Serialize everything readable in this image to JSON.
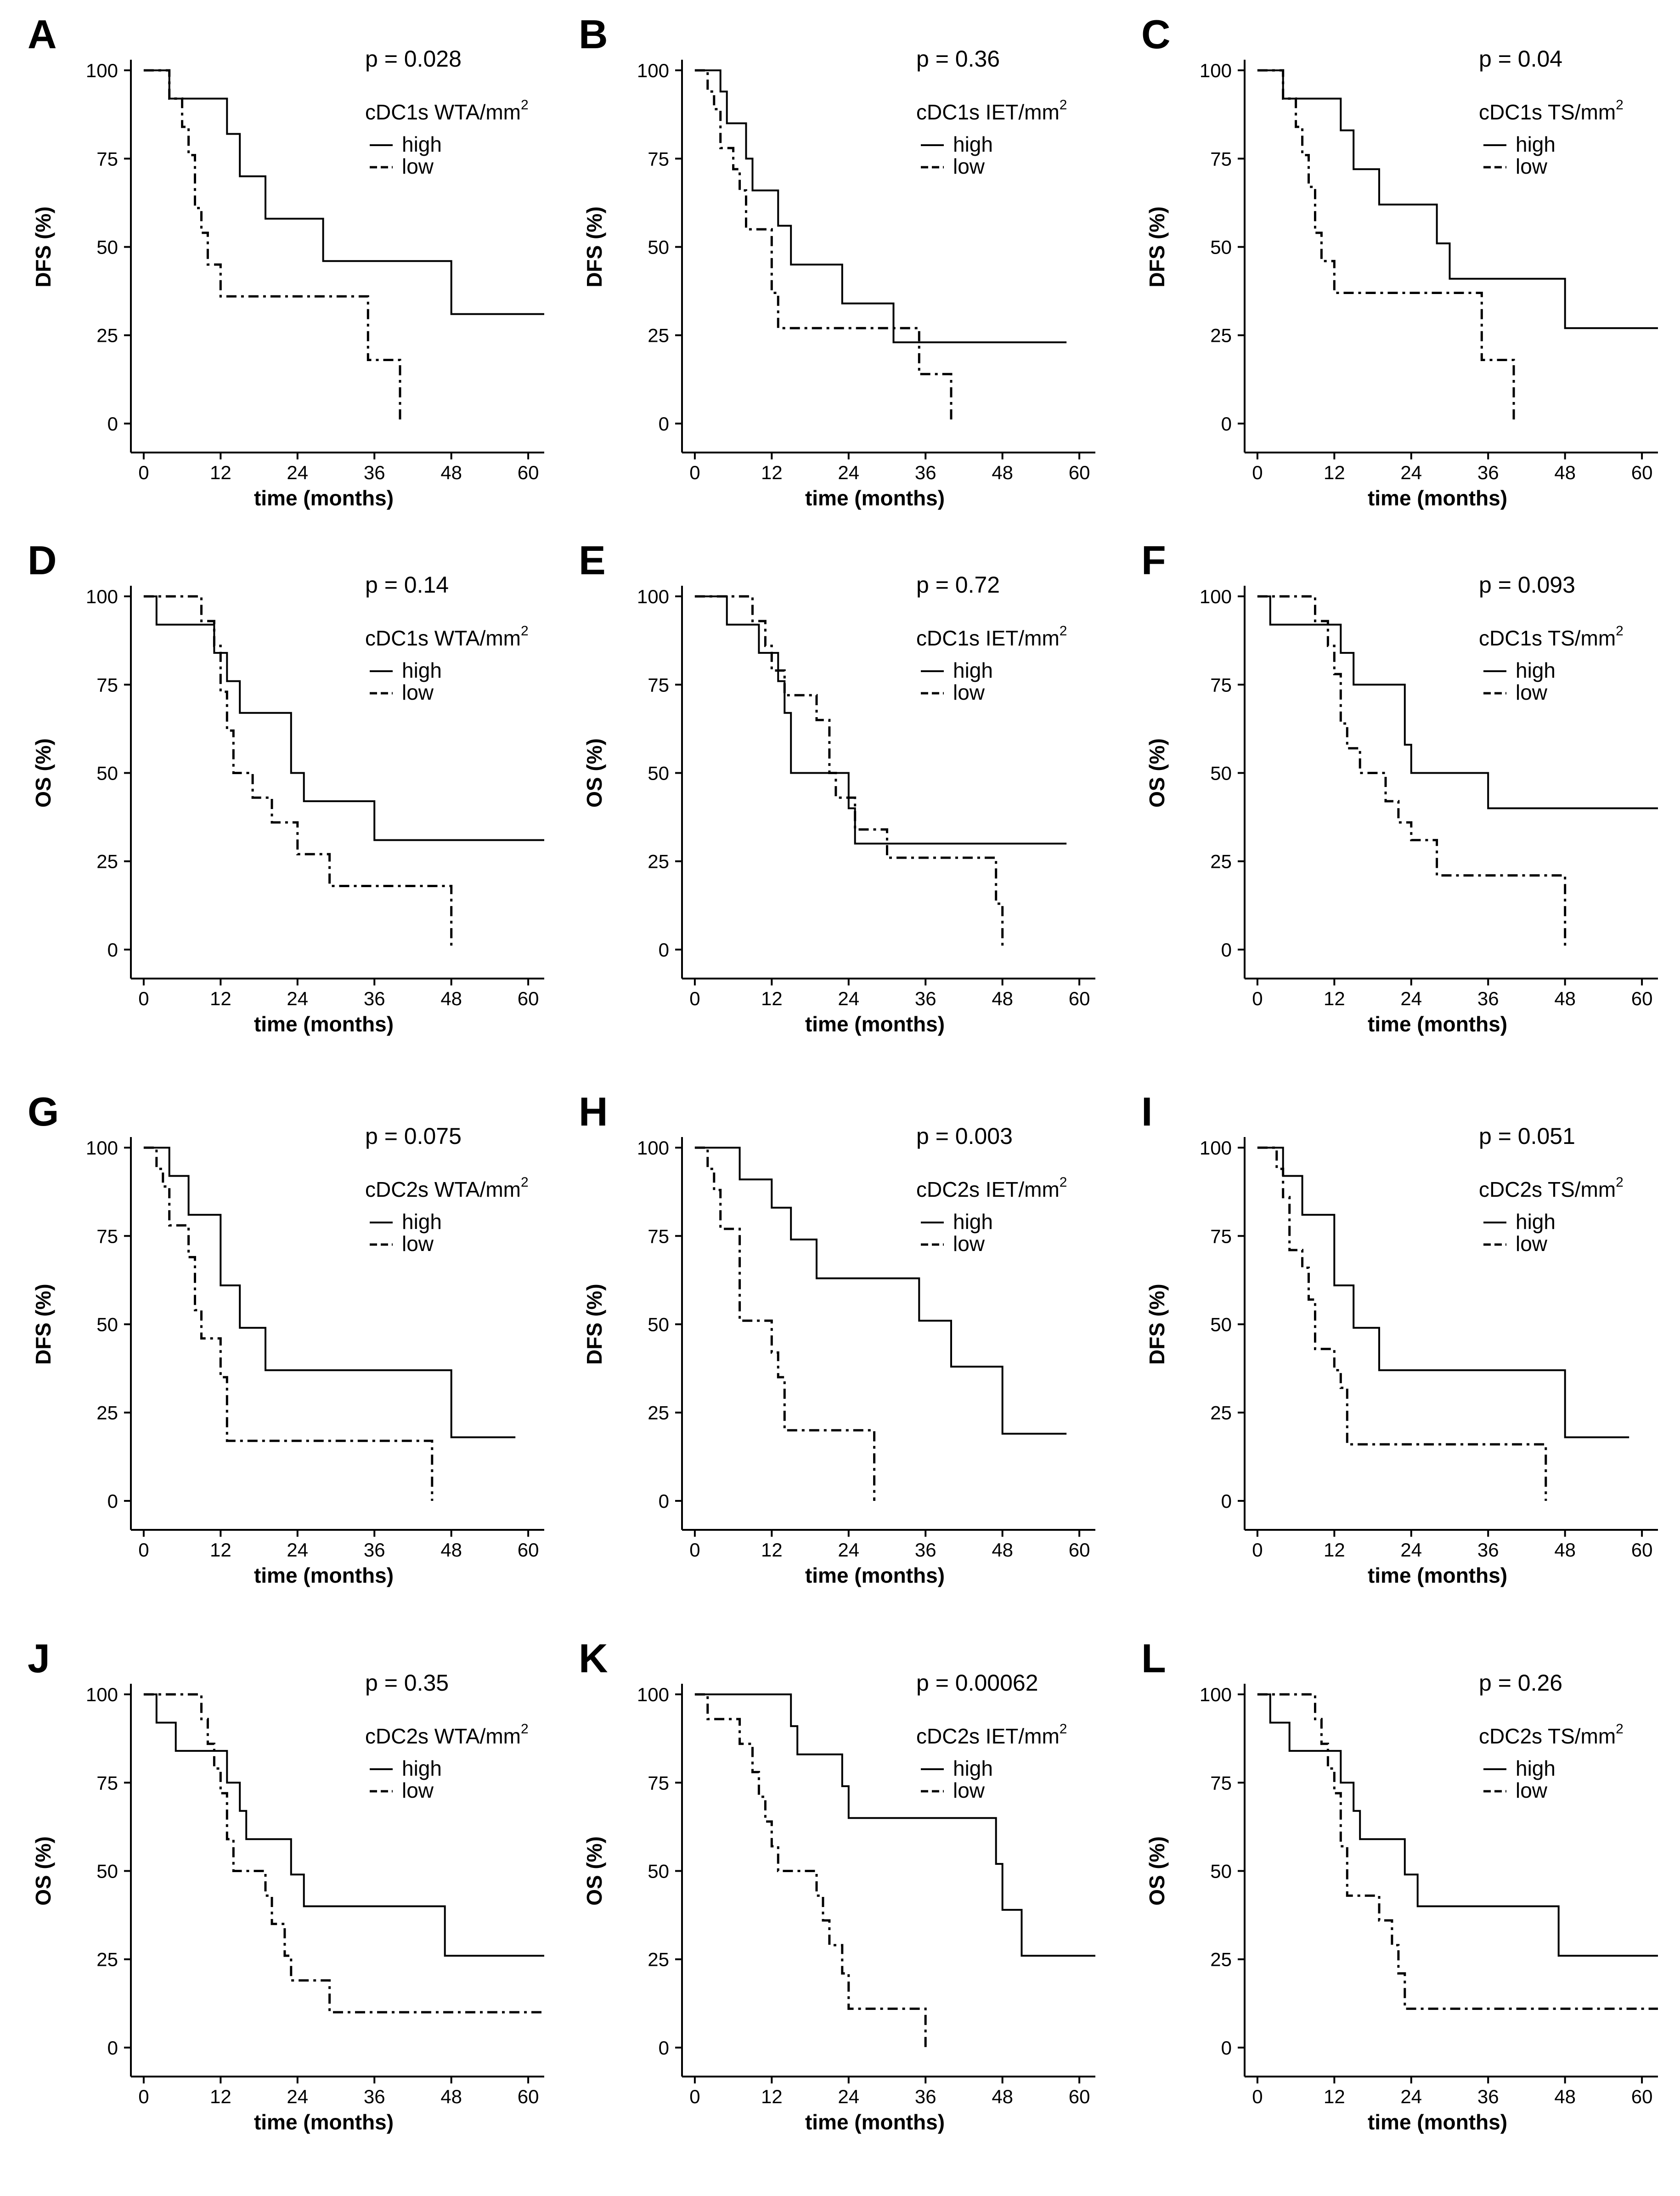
{
  "figure": {
    "background": "#ffffff",
    "line_color": "#000000"
  },
  "chart_data": [
    {
      "panel": "A",
      "type": "line",
      "step": true,
      "pvalue": "p = 0.028",
      "legend_title": "cDC1s WTA/mm",
      "legend_sup": "2",
      "xlabel": "time (months)",
      "ylabel": "DFS (%)",
      "xlim": [
        -2,
        62.5
      ],
      "ylim": [
        -3,
        103
      ],
      "xticks": [
        0,
        12,
        24,
        36,
        48,
        60
      ],
      "yticks": [
        0,
        25,
        50,
        75,
        100
      ],
      "series": [
        {
          "name": "high",
          "style": "solid",
          "x": [
            0,
            4,
            13,
            15,
            19,
            28,
            48,
            62.5
          ],
          "y": [
            100,
            92,
            82,
            70,
            58,
            46,
            31,
            31
          ]
        },
        {
          "name": "low",
          "style": "dashdot",
          "x": [
            0,
            4,
            6,
            7,
            8,
            9,
            10,
            12,
            35,
            40,
            40
          ],
          "y": [
            100,
            92,
            84,
            76,
            61,
            54,
            45,
            36,
            18,
            18,
            0
          ]
        }
      ]
    },
    {
      "panel": "B",
      "type": "line",
      "step": true,
      "pvalue": "p = 0.36",
      "legend_title": "cDC1s IET/mm",
      "legend_sup": "2",
      "xlabel": "time (months)",
      "ylabel": "DFS (%)",
      "xlim": [
        -2,
        62.5
      ],
      "ylim": [
        -3,
        103
      ],
      "xticks": [
        0,
        12,
        24,
        36,
        48,
        60
      ],
      "yticks": [
        0,
        25,
        50,
        75,
        100
      ],
      "series": [
        {
          "name": "high",
          "style": "solid",
          "x": [
            0,
            4,
            5,
            8,
            9,
            13,
            15,
            23,
            31,
            58
          ],
          "y": [
            100,
            94,
            85,
            75,
            66,
            56,
            45,
            34,
            23,
            23
          ]
        },
        {
          "name": "low",
          "style": "dashdot",
          "x": [
            0,
            2,
            3,
            4,
            6,
            7,
            8,
            12,
            13,
            35,
            40,
            40
          ],
          "y": [
            100,
            94,
            89,
            78,
            72,
            66,
            55,
            37,
            27,
            14,
            14,
            0
          ]
        }
      ]
    },
    {
      "panel": "C",
      "type": "line",
      "step": true,
      "pvalue": "p = 0.04",
      "legend_title": "cDC1s TS/mm",
      "legend_sup": "2",
      "xlabel": "time (months)",
      "ylabel": "DFS (%)",
      "xlim": [
        -2,
        62.5
      ],
      "ylim": [
        -3,
        103
      ],
      "xticks": [
        0,
        12,
        24,
        36,
        48,
        60
      ],
      "yticks": [
        0,
        25,
        50,
        75,
        100
      ],
      "series": [
        {
          "name": "high",
          "style": "solid",
          "x": [
            0,
            4,
            13,
            15,
            19,
            28,
            30,
            48,
            62.5
          ],
          "y": [
            100,
            92,
            83,
            72,
            62,
            51,
            41,
            27,
            27
          ]
        },
        {
          "name": "low",
          "style": "dashdot",
          "x": [
            0,
            4,
            6,
            7,
            8,
            9,
            10,
            12,
            35,
            40,
            40
          ],
          "y": [
            100,
            92,
            84,
            76,
            67,
            54,
            46,
            37,
            18,
            18,
            0
          ]
        }
      ]
    },
    {
      "panel": "D",
      "type": "line",
      "step": true,
      "pvalue": "p = 0.14",
      "legend_title": "cDC1s WTA/mm",
      "legend_sup": "2",
      "xlabel": "time (months)",
      "ylabel": "OS (%)",
      "xlim": [
        -2,
        62.5
      ],
      "ylim": [
        -3,
        103
      ],
      "xticks": [
        0,
        12,
        24,
        36,
        48,
        60
      ],
      "yticks": [
        0,
        25,
        50,
        75,
        100
      ],
      "series": [
        {
          "name": "high",
          "style": "solid",
          "x": [
            0,
            2,
            11,
            13,
            15,
            23,
            25,
            36,
            62.5
          ],
          "y": [
            100,
            92,
            84,
            76,
            67,
            50,
            42,
            31,
            31
          ]
        },
        {
          "name": "low",
          "style": "dashdot",
          "x": [
            0,
            9,
            11,
            12,
            13,
            14,
            17,
            20,
            24,
            29,
            48,
            48
          ],
          "y": [
            100,
            93,
            86,
            73,
            62,
            50,
            43,
            36,
            27,
            18,
            18,
            0
          ]
        }
      ]
    },
    {
      "panel": "E",
      "type": "line",
      "step": true,
      "pvalue": "p = 0.72",
      "legend_title": "cDC1s IET/mm",
      "legend_sup": "2",
      "xlabel": "time (months)",
      "ylabel": "OS (%)",
      "xlim": [
        -2,
        62.5
      ],
      "ylim": [
        -3,
        103
      ],
      "xticks": [
        0,
        12,
        24,
        36,
        48,
        60
      ],
      "yticks": [
        0,
        25,
        50,
        75,
        100
      ],
      "series": [
        {
          "name": "high",
          "style": "solid",
          "x": [
            0,
            5,
            10,
            13,
            14,
            15,
            24,
            25,
            58
          ],
          "y": [
            100,
            92,
            84,
            76,
            67,
            50,
            40,
            30,
            30
          ]
        },
        {
          "name": "low",
          "style": "dashdot",
          "x": [
            0,
            9,
            11,
            12,
            14,
            19,
            21,
            22,
            25,
            30,
            47,
            48,
            48
          ],
          "y": [
            100,
            93,
            86,
            79,
            72,
            65,
            50,
            43,
            34,
            26,
            13,
            13,
            0
          ]
        }
      ]
    },
    {
      "panel": "F",
      "type": "line",
      "step": true,
      "pvalue": "p = 0.093",
      "legend_title": "cDC1s TS/mm",
      "legend_sup": "2",
      "xlabel": "time (months)",
      "ylabel": "OS (%)",
      "xlim": [
        -2,
        62.5
      ],
      "ylim": [
        -3,
        103
      ],
      "xticks": [
        0,
        12,
        24,
        36,
        48,
        60
      ],
      "yticks": [
        0,
        25,
        50,
        75,
        100
      ],
      "series": [
        {
          "name": "high",
          "style": "solid",
          "x": [
            0,
            2,
            13,
            15,
            23,
            24,
            36,
            62.5
          ],
          "y": [
            100,
            92,
            84,
            75,
            58,
            50,
            40,
            40
          ]
        },
        {
          "name": "low",
          "style": "dashdot",
          "x": [
            0,
            9,
            11,
            12,
            13,
            14,
            16,
            20,
            22,
            24,
            28,
            48,
            48
          ],
          "y": [
            100,
            93,
            86,
            78,
            64,
            57,
            50,
            42,
            36,
            31,
            21,
            21,
            0
          ]
        }
      ]
    },
    {
      "panel": "G",
      "type": "line",
      "step": true,
      "pvalue": "p = 0.075",
      "legend_title": "cDC2s WTA/mm",
      "legend_sup": "2",
      "xlabel": "time (months)",
      "ylabel": "DFS (%)",
      "xlim": [
        -2,
        62.5
      ],
      "ylim": [
        -3,
        103
      ],
      "xticks": [
        0,
        12,
        24,
        36,
        48,
        60
      ],
      "yticks": [
        0,
        25,
        50,
        75,
        100
      ],
      "series": [
        {
          "name": "high",
          "style": "solid",
          "x": [
            0,
            4,
            7,
            12,
            15,
            19,
            48,
            58
          ],
          "y": [
            100,
            92,
            81,
            61,
            49,
            37,
            18,
            18
          ]
        },
        {
          "name": "low",
          "style": "dashdot",
          "x": [
            0,
            2,
            3,
            4,
            7,
            8,
            9,
            12,
            13,
            45,
            45
          ],
          "y": [
            100,
            94,
            89,
            78,
            69,
            54,
            46,
            35,
            17,
            17,
            0
          ]
        }
      ]
    },
    {
      "panel": "H",
      "type": "line",
      "step": true,
      "pvalue": "p = 0.003",
      "legend_title": "cDC2s IET/mm",
      "legend_sup": "2",
      "xlabel": "time (months)",
      "ylabel": "DFS (%)",
      "xlim": [
        -2,
        62.5
      ],
      "ylim": [
        -3,
        103
      ],
      "xticks": [
        0,
        12,
        24,
        36,
        48,
        60
      ],
      "yticks": [
        0,
        25,
        50,
        75,
        100
      ],
      "series": [
        {
          "name": "high",
          "style": "solid",
          "x": [
            0,
            7,
            12,
            15,
            19,
            35,
            40,
            48,
            58
          ],
          "y": [
            100,
            91,
            83,
            74,
            63,
            51,
            38,
            19,
            19
          ]
        },
        {
          "name": "low",
          "style": "dashdot",
          "x": [
            0,
            2,
            3,
            4,
            7,
            12,
            13,
            14,
            28,
            28
          ],
          "y": [
            100,
            94,
            88,
            77,
            51,
            42,
            35,
            20,
            20,
            0
          ]
        }
      ]
    },
    {
      "panel": "I",
      "type": "line",
      "step": true,
      "pvalue": "p = 0.051",
      "legend_title": "cDC2s TS/mm",
      "legend_sup": "2",
      "xlabel": "time (months)",
      "ylabel": "DFS (%)",
      "xlim": [
        -2,
        62.5
      ],
      "ylim": [
        -3,
        103
      ],
      "xticks": [
        0,
        12,
        24,
        36,
        48,
        60
      ],
      "yticks": [
        0,
        25,
        50,
        75,
        100
      ],
      "series": [
        {
          "name": "high",
          "style": "solid",
          "x": [
            0,
            4,
            7,
            12,
            15,
            19,
            48,
            58
          ],
          "y": [
            100,
            92,
            81,
            61,
            49,
            37,
            18,
            18
          ]
        },
        {
          "name": "low",
          "style": "dashdot",
          "x": [
            0,
            3,
            4,
            5,
            7,
            8,
            9,
            12,
            13,
            14,
            45,
            45
          ],
          "y": [
            100,
            94,
            86,
            71,
            66,
            57,
            43,
            37,
            32,
            16,
            16,
            0
          ]
        }
      ]
    },
    {
      "panel": "J",
      "type": "line",
      "step": true,
      "pvalue": "p = 0.35",
      "legend_title": "cDC2s WTA/mm",
      "legend_sup": "2",
      "xlabel": "time (months)",
      "ylabel": "OS (%)",
      "xlim": [
        -2,
        62.5
      ],
      "ylim": [
        -3,
        103
      ],
      "xticks": [
        0,
        12,
        24,
        36,
        48,
        60
      ],
      "yticks": [
        0,
        25,
        50,
        75,
        100
      ],
      "series": [
        {
          "name": "high",
          "style": "solid",
          "x": [
            0,
            2,
            5,
            13,
            15,
            16,
            23,
            25,
            47,
            62.5
          ],
          "y": [
            100,
            92,
            84,
            75,
            67,
            59,
            49,
            40,
            26,
            26
          ]
        },
        {
          "name": "low",
          "style": "dashdot",
          "x": [
            0,
            9,
            10,
            11,
            12,
            13,
            14,
            19,
            20,
            22,
            23,
            29,
            62.5
          ],
          "y": [
            100,
            93,
            86,
            79,
            72,
            59,
            50,
            43,
            35,
            26,
            19,
            10,
            10
          ]
        }
      ]
    },
    {
      "panel": "K",
      "type": "line",
      "step": true,
      "pvalue": "p = 0.00062",
      "legend_title": "cDC2s IET/mm",
      "legend_sup": "2",
      "xlabel": "time (months)",
      "ylabel": "OS (%)",
      "xlim": [
        -2,
        62.5
      ],
      "ylim": [
        -3,
        103
      ],
      "xticks": [
        0,
        12,
        24,
        36,
        48,
        60
      ],
      "yticks": [
        0,
        25,
        50,
        75,
        100
      ],
      "series": [
        {
          "name": "high",
          "style": "solid",
          "x": [
            0,
            15,
            16,
            23,
            24,
            47,
            48,
            51,
            62.5
          ],
          "y": [
            100,
            91,
            83,
            74,
            65,
            52,
            39,
            26,
            26
          ]
        },
        {
          "name": "low",
          "style": "dashdot",
          "x": [
            0,
            2,
            7,
            9,
            10,
            11,
            12,
            13,
            19,
            20,
            21,
            23,
            24,
            36,
            36
          ],
          "y": [
            100,
            93,
            86,
            78,
            71,
            64,
            57,
            50,
            43,
            36,
            29,
            21,
            11,
            11,
            0
          ]
        }
      ]
    },
    {
      "panel": "L",
      "type": "line",
      "step": true,
      "pvalue": "p = 0.26",
      "legend_title": "cDC2s TS/mm",
      "legend_sup": "2",
      "xlabel": "time (months)",
      "ylabel": "OS (%)",
      "xlim": [
        -2,
        62.5
      ],
      "ylim": [
        -3,
        103
      ],
      "xticks": [
        0,
        12,
        24,
        36,
        48,
        60
      ],
      "yticks": [
        0,
        25,
        50,
        75,
        100
      ],
      "series": [
        {
          "name": "high",
          "style": "solid",
          "x": [
            0,
            2,
            5,
            13,
            15,
            16,
            23,
            25,
            47,
            62.5
          ],
          "y": [
            100,
            92,
            84,
            75,
            67,
            59,
            49,
            40,
            26,
            26
          ]
        },
        {
          "name": "low",
          "style": "dashdot",
          "x": [
            0,
            9,
            10,
            11,
            12,
            13,
            14,
            19,
            21,
            22,
            23,
            62.5
          ],
          "y": [
            100,
            93,
            86,
            79,
            72,
            57,
            43,
            36,
            29,
            21,
            11,
            11
          ]
        }
      ]
    }
  ]
}
